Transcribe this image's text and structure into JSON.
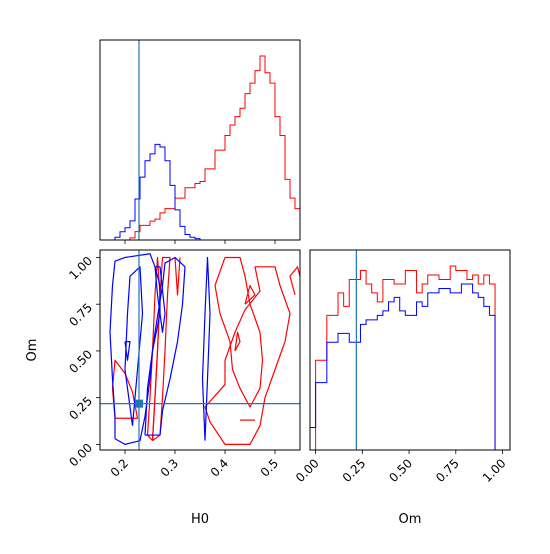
{
  "chart_data": {
    "type": "corner",
    "parameters": [
      "H0",
      "Om"
    ],
    "truth": {
      "H0": 0.228,
      "Om": 0.218
    },
    "colors": {
      "blue": "#0000ff",
      "red": "#ff0000",
      "truth": "#1f77b4"
    },
    "ranges": {
      "H0": [
        0.15,
        0.55
      ],
      "Om": [
        -0.03,
        1.04
      ]
    },
    "ticks": {
      "H0": [
        0.2,
        0.3,
        0.4,
        0.5
      ],
      "H0_labels": [
        "0.2",
        "0.3",
        "0.4",
        "0.5"
      ],
      "Om": [
        0.0,
        0.25,
        0.5,
        0.75,
        1.0
      ],
      "Om_labels": [
        "0.00",
        "0.25",
        "0.50",
        "0.75",
        "1.00"
      ]
    },
    "axis_labels": {
      "bottom_left": "H0",
      "bottom_right": "Om",
      "left": "Om"
    },
    "hist_H0": {
      "bins": [
        0.15,
        0.16,
        0.17,
        0.18,
        0.19,
        0.2,
        0.21,
        0.22,
        0.23,
        0.24,
        0.25,
        0.26,
        0.27,
        0.28,
        0.29,
        0.3,
        0.31,
        0.32,
        0.33,
        0.34,
        0.35,
        0.36,
        0.37,
        0.38,
        0.39,
        0.4,
        0.41,
        0.42,
        0.43,
        0.44,
        0.45,
        0.46,
        0.47,
        0.48,
        0.49,
        0.5,
        0.51,
        0.52,
        0.53,
        0.54,
        0.55
      ],
      "blue": [
        0,
        0,
        0,
        2,
        6,
        9,
        14,
        30,
        46,
        58,
        63,
        70,
        68,
        58,
        40,
        22,
        10,
        4,
        2,
        1,
        0,
        0,
        0,
        0,
        0,
        0,
        0,
        0,
        0,
        0,
        0,
        0,
        0,
        0,
        0,
        0,
        0,
        0,
        0,
        0
      ],
      "red": [
        0,
        0,
        0,
        0,
        0,
        0,
        2,
        8,
        14,
        14,
        18,
        20,
        26,
        30,
        30,
        40,
        40,
        50,
        50,
        54,
        56,
        68,
        68,
        86,
        86,
        100,
        110,
        118,
        126,
        140,
        150,
        162,
        176,
        160,
        150,
        118,
        100,
        58,
        40,
        30
      ],
      "blue_scale": 0.52,
      "red_scale": 1.0
    },
    "hist_Om": {
      "bins": [
        -0.03,
        0.0,
        0.03,
        0.06,
        0.09,
        0.12,
        0.15,
        0.18,
        0.21,
        0.24,
        0.27,
        0.3,
        0.33,
        0.36,
        0.39,
        0.42,
        0.45,
        0.48,
        0.51,
        0.54,
        0.57,
        0.6,
        0.63,
        0.66,
        0.69,
        0.72,
        0.75,
        0.78,
        0.81,
        0.84,
        0.87,
        0.9,
        0.93,
        0.96,
        0.99,
        1.04
      ],
      "blue": [
        10,
        30,
        30,
        48,
        48,
        52,
        52,
        48,
        48,
        56,
        58,
        58,
        60,
        62,
        66,
        68,
        62,
        60,
        60,
        66,
        64,
        70,
        70,
        72,
        72,
        70,
        70,
        74,
        74,
        70,
        68,
        64,
        60,
        0,
        0
      ],
      "red": [
        0,
        40,
        40,
        60,
        60,
        70,
        64,
        76,
        76,
        80,
        74,
        70,
        66,
        76,
        76,
        74,
        74,
        80,
        80,
        70,
        74,
        78,
        78,
        76,
        76,
        82,
        80,
        80,
        76,
        78,
        74,
        78,
        74,
        0,
        0
      ]
    },
    "contours": {
      "blue": [
        [
          [
            0.18,
            0.03
          ],
          [
            0.18,
            0.15
          ],
          [
            0.175,
            0.35
          ],
          [
            0.17,
            0.6
          ],
          [
            0.175,
            0.85
          ],
          [
            0.18,
            0.98
          ],
          [
            0.2,
            1.0
          ],
          [
            0.25,
            1.02
          ],
          [
            0.26,
            0.95
          ],
          [
            0.27,
            0.85
          ],
          [
            0.27,
            0.7
          ],
          [
            0.255,
            0.5
          ],
          [
            0.25,
            0.35
          ],
          [
            0.24,
            0.15
          ],
          [
            0.23,
            0.02
          ],
          [
            0.2,
            0.0
          ],
          [
            0.18,
            0.03
          ]
        ],
        [
          [
            0.215,
            0.1
          ],
          [
            0.2,
            0.4
          ],
          [
            0.205,
            0.7
          ],
          [
            0.21,
            0.9
          ],
          [
            0.23,
            0.95
          ],
          [
            0.235,
            0.7
          ],
          [
            0.225,
            0.4
          ],
          [
            0.215,
            0.1
          ]
        ],
        [
          [
            0.24,
            0.05
          ],
          [
            0.245,
            0.3
          ],
          [
            0.26,
            0.6
          ],
          [
            0.275,
            0.85
          ],
          [
            0.28,
            0.97
          ],
          [
            0.3,
            1.0
          ],
          [
            0.32,
            0.95
          ],
          [
            0.315,
            0.75
          ],
          [
            0.305,
            0.55
          ],
          [
            0.29,
            0.35
          ],
          [
            0.275,
            0.18
          ],
          [
            0.27,
            0.05
          ],
          [
            0.24,
            0.05
          ]
        ],
        [
          [
            0.26,
            0.95
          ],
          [
            0.265,
            0.8
          ],
          [
            0.275,
            0.6
          ],
          [
            0.28,
            0.7
          ],
          [
            0.27,
            0.95
          ],
          [
            0.26,
            0.95
          ]
        ],
        [
          [
            0.2,
            0.55
          ],
          [
            0.205,
            0.45
          ],
          [
            0.21,
            0.55
          ],
          [
            0.2,
            0.55
          ]
        ],
        [
          [
            0.36,
            0.02
          ],
          [
            0.355,
            0.35
          ],
          [
            0.36,
            0.7
          ],
          [
            0.365,
            1.0
          ],
          [
            0.37,
            0.7
          ],
          [
            0.365,
            0.35
          ],
          [
            0.36,
            0.02
          ]
        ]
      ],
      "red": [
        [
          [
            0.18,
            0.14
          ],
          [
            0.175,
            0.3
          ],
          [
            0.18,
            0.45
          ],
          [
            0.2,
            0.38
          ],
          [
            0.215,
            0.28
          ],
          [
            0.225,
            0.14
          ],
          [
            0.18,
            0.14
          ]
        ],
        [
          [
            0.255,
            0.02
          ],
          [
            0.26,
            0.25
          ],
          [
            0.265,
            0.5
          ],
          [
            0.27,
            0.8
          ],
          [
            0.275,
            1.0
          ],
          [
            0.29,
            1.0
          ],
          [
            0.285,
            0.8
          ],
          [
            0.28,
            0.5
          ],
          [
            0.275,
            0.25
          ],
          [
            0.27,
            0.05
          ],
          [
            0.255,
            0.02
          ]
        ],
        [
          [
            0.255,
            0.02
          ],
          [
            0.26,
            0.25
          ],
          [
            0.265,
            0.5
          ],
          [
            0.27,
            0.8
          ],
          [
            0.265,
            1.0
          ],
          [
            0.26,
            0.8
          ],
          [
            0.255,
            0.5
          ],
          [
            0.25,
            0.25
          ],
          [
            0.245,
            0.05
          ],
          [
            0.255,
            0.02
          ]
        ],
        [
          [
            0.4,
            0.0
          ],
          [
            0.37,
            0.12
          ],
          [
            0.36,
            0.2
          ],
          [
            0.4,
            0.32
          ],
          [
            0.4,
            0.45
          ],
          [
            0.42,
            0.6
          ],
          [
            0.44,
            0.72
          ],
          [
            0.47,
            0.82
          ],
          [
            0.46,
            0.95
          ],
          [
            0.5,
            0.95
          ],
          [
            0.51,
            0.85
          ],
          [
            0.53,
            0.7
          ],
          [
            0.52,
            0.55
          ],
          [
            0.5,
            0.4
          ],
          [
            0.48,
            0.25
          ],
          [
            0.47,
            0.1
          ],
          [
            0.45,
            0.0
          ],
          [
            0.4,
            0.0
          ]
        ],
        [
          [
            0.4,
            1.0
          ],
          [
            0.38,
            0.85
          ],
          [
            0.39,
            0.7
          ],
          [
            0.41,
            0.55
          ],
          [
            0.415,
            0.4
          ],
          [
            0.43,
            0.3
          ],
          [
            0.45,
            0.2
          ],
          [
            0.47,
            0.3
          ],
          [
            0.475,
            0.45
          ],
          [
            0.47,
            0.6
          ],
          [
            0.45,
            0.75
          ],
          [
            0.44,
            0.9
          ],
          [
            0.43,
            1.0
          ],
          [
            0.4,
            1.0
          ]
        ],
        [
          [
            0.42,
            0.5
          ],
          [
            0.425,
            0.6
          ],
          [
            0.43,
            0.55
          ],
          [
            0.42,
            0.5
          ]
        ],
        [
          [
            0.44,
            0.75
          ],
          [
            0.45,
            0.85
          ],
          [
            0.46,
            0.8
          ],
          [
            0.44,
            0.75
          ]
        ],
        [
          [
            0.43,
            0.13
          ],
          [
            0.46,
            0.13
          ]
        ],
        [
          [
            0.54,
            0.8
          ],
          [
            0.53,
            0.9
          ],
          [
            0.545,
            0.95
          ],
          [
            0.55,
            0.9
          ]
        ],
        [
          [
            0.3,
            1.0
          ],
          [
            0.305,
            0.8
          ],
          [
            0.31,
            1.0
          ]
        ]
      ]
    }
  }
}
